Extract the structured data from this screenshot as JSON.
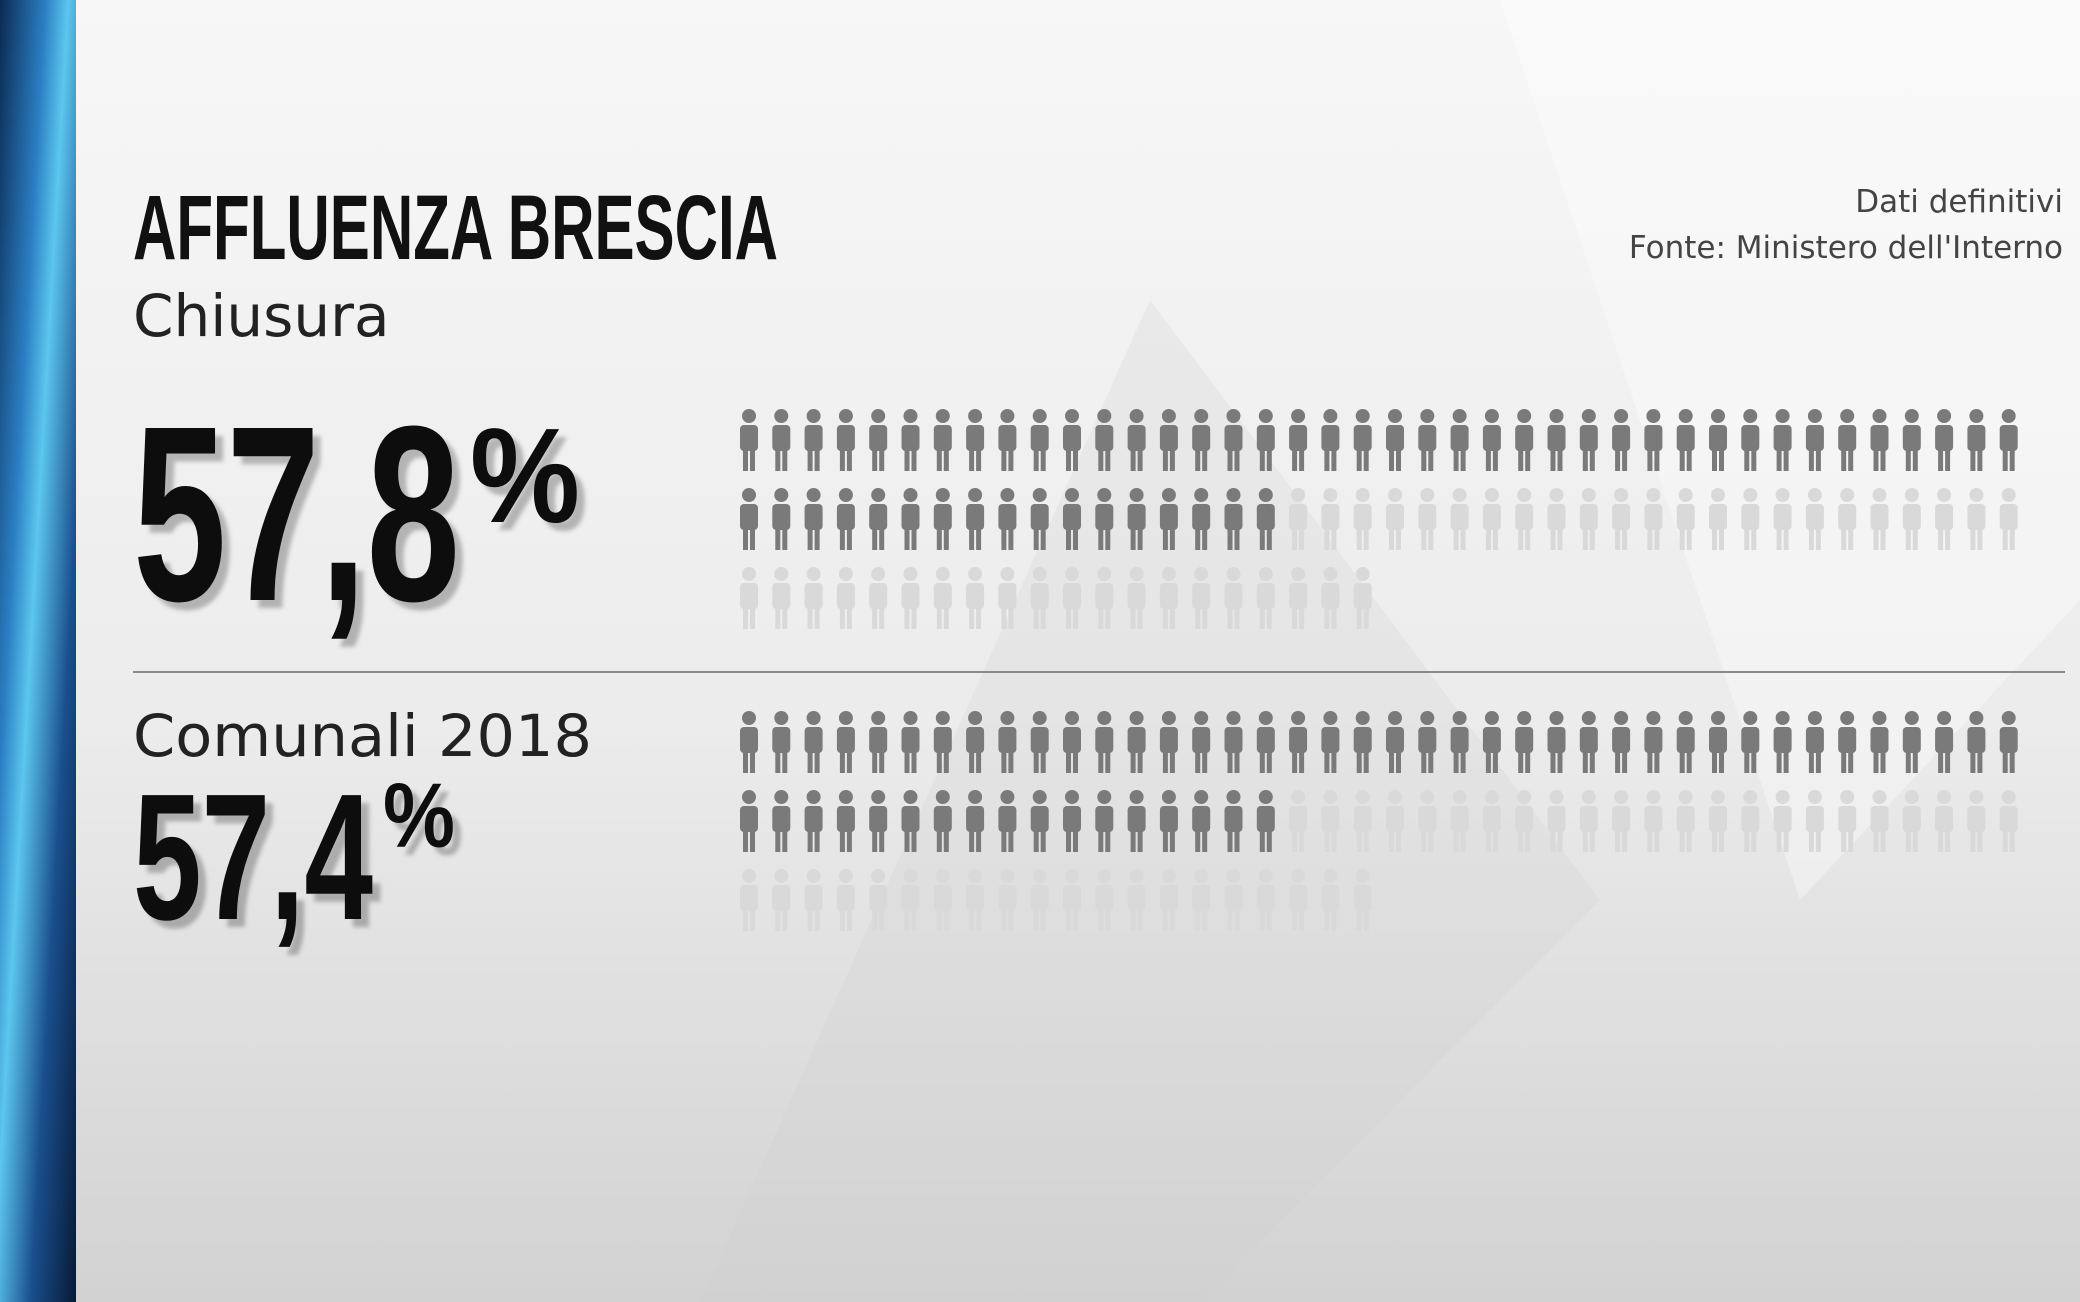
{
  "chart_data": {
    "type": "pictogram",
    "title": "AFFLUENZA BRESCIA",
    "notes": [
      "Dati definitivi",
      "Fonte: Ministero dell'Interno"
    ],
    "categories": [
      "Chiusura",
      "Comunali 2018"
    ],
    "values": [
      57.8,
      57.4
    ],
    "value_labels": [
      "57,8",
      "57,4"
    ],
    "unit": "%",
    "ylim": [
      0,
      100
    ],
    "colors": {
      "filled": "#7a7a7a",
      "empty": "#d9d9d9"
    }
  }
}
